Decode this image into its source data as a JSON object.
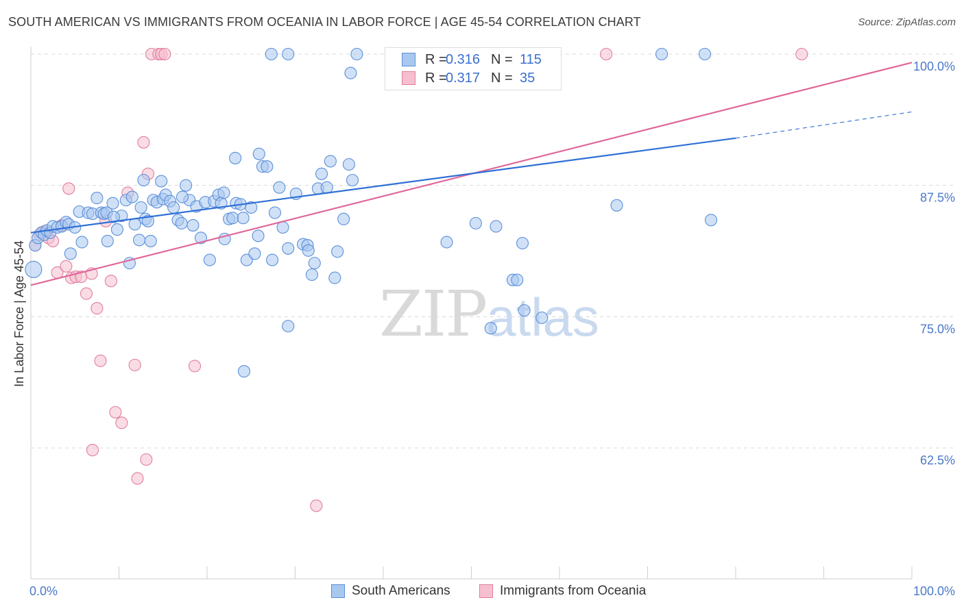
{
  "title": "SOUTH AMERICAN VS IMMIGRANTS FROM OCEANIA IN LABOR FORCE | AGE 45-54 CORRELATION CHART",
  "source": "Source: ZipAtlas.com",
  "watermark": {
    "zip": "ZIP",
    "atlas": "atlas"
  },
  "colors": {
    "blue_fill": "#a9c8f0",
    "blue_stroke": "#5b8fd8",
    "blue_line": "#2e6fd6",
    "pink_fill": "#f6bfd0",
    "pink_stroke": "#e07e9d",
    "pink_line": "#e0679a",
    "grid": "#d8d8d8",
    "tick_label": "#4a79c8"
  },
  "legend": {
    "rows": [
      {
        "r_label": "R =",
        "r_value": "0.316",
        "n_label": "N =",
        "n_value": "115"
      },
      {
        "r_label": "R =",
        "r_value": "0.317",
        "n_label": "N =",
        "n_value": "35"
      }
    ]
  },
  "bottom_legend": [
    "South Americans",
    "Immigrants from Oceania"
  ],
  "chart_data": {
    "type": "scatter",
    "title": "SOUTH AMERICAN VS IMMIGRANTS FROM OCEANIA IN LABOR FORCE | AGE 45-54 CORRELATION CHART",
    "xlabel": "",
    "ylabel": "In Labor Force | Age 45-54",
    "xlim": [
      0,
      100
    ],
    "ylim": [
      50,
      101
    ],
    "x_tick_labels": [
      "0.0%",
      "100.0%"
    ],
    "y_ticks": [
      62.5,
      75.0,
      87.5,
      100.0
    ],
    "y_tick_labels": [
      "62.5%",
      "75.0%",
      "87.5%",
      "100.0%"
    ],
    "grid": true,
    "legend_position": "top-center",
    "series": [
      {
        "name": "South Americans",
        "R": 0.316,
        "N": 115,
        "trend": {
          "x0": 0,
          "y0": 83.0,
          "x1": 80,
          "y1": 92.0,
          "dashed_to_x": 100,
          "dashed_to_y": 94.5
        },
        "points": [
          [
            0.3,
            79.5
          ],
          [
            0.5,
            81.8
          ],
          [
            0.8,
            82.5
          ],
          [
            1.2,
            83.0
          ],
          [
            1.5,
            82.8
          ],
          [
            1.8,
            83.2
          ],
          [
            2.2,
            83.0
          ],
          [
            2.5,
            83.6
          ],
          [
            3.0,
            83.5
          ],
          [
            3.5,
            83.6
          ],
          [
            4.0,
            84.0
          ],
          [
            4.3,
            83.8
          ],
          [
            4.5,
            81.0
          ],
          [
            5.0,
            83.5
          ],
          [
            5.5,
            85.0
          ],
          [
            5.8,
            82.1
          ],
          [
            6.5,
            84.9
          ],
          [
            7.0,
            84.8
          ],
          [
            7.5,
            86.3
          ],
          [
            8.0,
            84.9
          ],
          [
            8.3,
            84.8
          ],
          [
            8.7,
            82.2
          ],
          [
            9.3,
            85.8
          ],
          [
            9.8,
            83.3
          ],
          [
            10.3,
            84.6
          ],
          [
            10.8,
            86.1
          ],
          [
            11.2,
            80.1
          ],
          [
            11.5,
            86.4
          ],
          [
            11.8,
            83.8
          ],
          [
            12.3,
            82.3
          ],
          [
            12.5,
            85.4
          ],
          [
            12.8,
            88.0
          ],
          [
            13.0,
            84.3
          ],
          [
            13.3,
            84.1
          ],
          [
            13.6,
            82.2
          ],
          [
            13.9,
            86.1
          ],
          [
            14.3,
            85.9
          ],
          [
            14.8,
            87.9
          ],
          [
            15.0,
            86.2
          ],
          [
            15.3,
            86.6
          ],
          [
            15.8,
            86.0
          ],
          [
            16.2,
            85.4
          ],
          [
            16.7,
            84.2
          ],
          [
            17.1,
            83.9
          ],
          [
            17.6,
            87.5
          ],
          [
            18.0,
            86.1
          ],
          [
            18.4,
            83.7
          ],
          [
            18.8,
            85.5
          ],
          [
            19.3,
            82.5
          ],
          [
            19.8,
            85.9
          ],
          [
            20.3,
            80.4
          ],
          [
            20.8,
            86.0
          ],
          [
            21.3,
            86.6
          ],
          [
            21.6,
            85.8
          ],
          [
            22.0,
            82.4
          ],
          [
            22.5,
            84.3
          ],
          [
            22.9,
            84.4
          ],
          [
            23.3,
            85.8
          ],
          [
            23.8,
            85.7
          ],
          [
            24.1,
            84.4
          ],
          [
            24.5,
            80.4
          ],
          [
            25.0,
            85.4
          ],
          [
            25.4,
            81.0
          ],
          [
            25.8,
            82.7
          ],
          [
            26.3,
            89.3
          ],
          [
            26.8,
            89.3
          ],
          [
            27.4,
            80.4
          ],
          [
            28.2,
            87.3
          ],
          [
            28.6,
            83.5
          ],
          [
            29.2,
            81.5
          ],
          [
            30.1,
            86.7
          ],
          [
            30.9,
            81.9
          ],
          [
            31.4,
            81.8
          ],
          [
            31.9,
            79.0
          ],
          [
            32.2,
            80.1
          ],
          [
            32.6,
            87.2
          ],
          [
            33.0,
            88.6
          ],
          [
            33.6,
            87.3
          ],
          [
            34.0,
            89.8
          ],
          [
            34.5,
            78.7
          ],
          [
            34.8,
            81.2
          ],
          [
            35.5,
            84.3
          ],
          [
            36.1,
            89.5
          ],
          [
            36.5,
            88.0
          ],
          [
            23.2,
            90.1
          ],
          [
            25.9,
            90.5
          ],
          [
            31.5,
            81.3
          ],
          [
            37.0,
            100.0
          ],
          [
            41.0,
            100.0
          ],
          [
            45.1,
            100.0
          ],
          [
            47.6,
            100.0
          ],
          [
            49.1,
            97.2
          ],
          [
            29.2,
            74.1
          ],
          [
            24.2,
            69.8
          ],
          [
            36.3,
            98.2
          ],
          [
            50.5,
            83.9
          ],
          [
            52.8,
            83.6
          ],
          [
            52.2,
            73.9
          ],
          [
            47.2,
            82.1
          ],
          [
            54.7,
            78.5
          ],
          [
            55.2,
            78.5
          ],
          [
            55.8,
            82.0
          ],
          [
            53.7,
            100.0
          ],
          [
            56.0,
            75.6
          ],
          [
            58.0,
            74.9
          ],
          [
            71.6,
            100.0
          ],
          [
            76.5,
            100.0
          ],
          [
            66.5,
            85.6
          ],
          [
            77.2,
            84.2
          ],
          [
            27.7,
            84.9
          ],
          [
            27.3,
            100.0
          ],
          [
            29.2,
            100.0
          ],
          [
            8.6,
            84.9
          ],
          [
            9.4,
            84.5
          ],
          [
            21.9,
            86.8
          ],
          [
            17.2,
            86.4
          ]
        ]
      },
      {
        "name": "Immigrants from Oceania",
        "R": 0.317,
        "N": 35,
        "trend": {
          "x0": 0,
          "y0": 78.0,
          "x1": 100,
          "y1": 99.2
        },
        "points": [
          [
            0.5,
            81.8
          ],
          [
            1.0,
            82.8
          ],
          [
            1.5,
            83.1
          ],
          [
            2.0,
            82.5
          ],
          [
            2.5,
            82.2
          ],
          [
            3.0,
            79.2
          ],
          [
            3.5,
            83.7
          ],
          [
            4.0,
            79.8
          ],
          [
            4.3,
            87.2
          ],
          [
            4.6,
            78.7
          ],
          [
            5.1,
            78.8
          ],
          [
            5.7,
            78.8
          ],
          [
            6.3,
            77.2
          ],
          [
            6.9,
            79.1
          ],
          [
            7.5,
            75.8
          ],
          [
            7.9,
            70.8
          ],
          [
            8.5,
            84.1
          ],
          [
            9.1,
            78.4
          ],
          [
            9.6,
            65.9
          ],
          [
            10.3,
            64.9
          ],
          [
            11.0,
            86.8
          ],
          [
            11.8,
            70.4
          ],
          [
            12.1,
            59.6
          ],
          [
            13.1,
            61.4
          ],
          [
            12.8,
            91.6
          ],
          [
            13.3,
            88.6
          ],
          [
            13.7,
            100.0
          ],
          [
            14.5,
            100.0
          ],
          [
            14.8,
            100.0
          ],
          [
            15.2,
            100.0
          ],
          [
            7.0,
            62.3
          ],
          [
            18.6,
            70.3
          ],
          [
            32.4,
            57.0
          ],
          [
            65.3,
            100.0
          ],
          [
            87.5,
            100.0
          ]
        ]
      }
    ]
  }
}
